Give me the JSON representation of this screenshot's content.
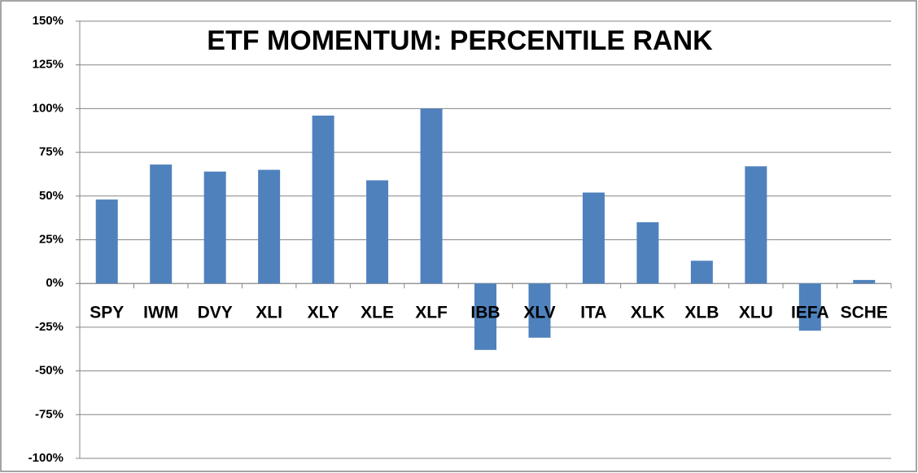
{
  "chart_data": {
    "type": "bar",
    "title": "ETF MOMENTUM: PERCENTILE RANK",
    "categories": [
      "SPY",
      "IWM",
      "DVY",
      "XLI",
      "XLY",
      "XLE",
      "XLF",
      "IBB",
      "XLV",
      "ITA",
      "XLK",
      "XLB",
      "XLU",
      "IEFA",
      "SCHE"
    ],
    "values": [
      48,
      68,
      64,
      65,
      96,
      59,
      100,
      -38,
      -31,
      52,
      35,
      13,
      67,
      -27,
      2
    ],
    "color": "#4f81bd",
    "ylim": [
      -100,
      150
    ],
    "yticks": [
      {
        "value": -100,
        "label": "-100%"
      },
      {
        "value": -75,
        "label": "-75%"
      },
      {
        "value": -50,
        "label": "-50%"
      },
      {
        "value": -25,
        "label": "-25%"
      },
      {
        "value": 0,
        "label": "0%"
      },
      {
        "value": 25,
        "label": "25%"
      },
      {
        "value": 50,
        "label": "50%"
      },
      {
        "value": 75,
        "label": "75%"
      },
      {
        "value": 100,
        "label": "100%"
      },
      {
        "value": 125,
        "label": "125%"
      },
      {
        "value": 150,
        "label": "150%"
      }
    ],
    "grid": true
  }
}
